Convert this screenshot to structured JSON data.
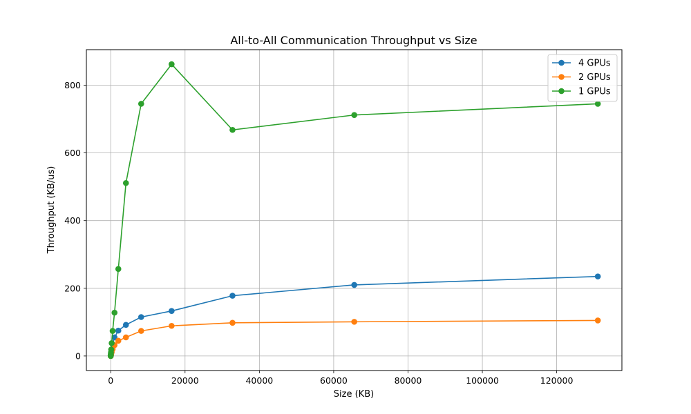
{
  "chart_data": {
    "type": "line",
    "title": "All-to-All Communication Throughput vs Size",
    "xlabel": "Size (KB)",
    "ylabel": "Throughput (KB/us)",
    "xlim": [
      -6550,
      137550
    ],
    "ylim": [
      -43,
      905
    ],
    "xticks": [
      0,
      20000,
      40000,
      60000,
      80000,
      100000,
      120000
    ],
    "yticks": [
      0,
      200,
      400,
      600,
      800
    ],
    "grid": true,
    "legend_position": "top-right",
    "x": [
      1,
      2,
      4,
      8,
      16,
      32,
      64,
      128,
      256,
      512,
      1024,
      2048,
      4096,
      8192,
      16384,
      32768,
      65536,
      131072
    ],
    "series": [
      {
        "name": "4 GPUs",
        "color": "#1f77b4",
        "values": [
          0.1,
          0.15,
          0.3,
          0.6,
          1.2,
          2.4,
          4.8,
          9.5,
          19,
          35,
          55,
          75,
          92,
          115,
          133,
          178,
          210,
          235
        ]
      },
      {
        "name": "2 GPUs",
        "color": "#ff7f0e",
        "values": [
          0.05,
          0.1,
          0.2,
          0.4,
          0.8,
          1.5,
          3,
          6,
          11,
          20,
          32,
          45,
          55,
          74,
          89,
          98,
          101,
          105
        ]
      },
      {
        "name": "1 GPUs",
        "color": "#2ca02c",
        "values": [
          0.2,
          0.4,
          0.8,
          1.5,
          3,
          5,
          10,
          19,
          38,
          74,
          128,
          257,
          511,
          745,
          862,
          668,
          712,
          745
        ]
      }
    ]
  }
}
